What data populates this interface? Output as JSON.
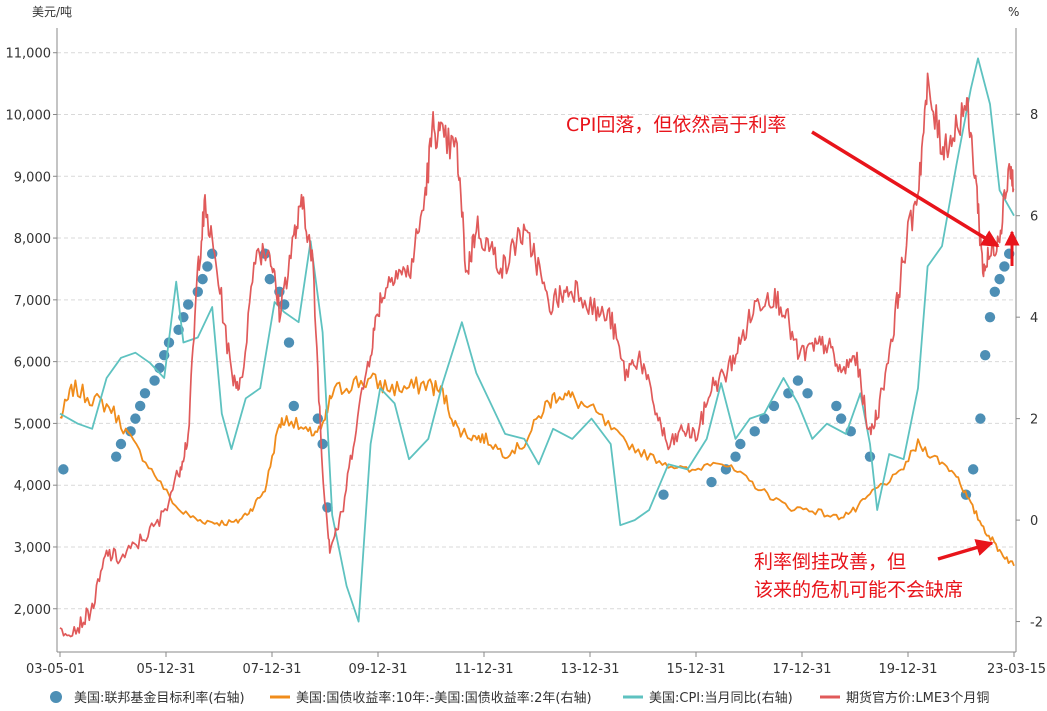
{
  "chart_data": {
    "type": "line",
    "left_axis": {
      "unit": "美元/吨",
      "ylim": [
        1300,
        11400
      ],
      "ticks": [
        "2,000",
        "3,000",
        "4,000",
        "5,000",
        "6,000",
        "7,000",
        "8,000",
        "9,000",
        "10,000",
        "11,000"
      ]
    },
    "right_axis": {
      "unit": "%",
      "ylim": [
        -2.6,
        9.7
      ],
      "ticks": [
        "-2",
        "0",
        "2",
        "4",
        "6",
        "8"
      ]
    },
    "x_ticks": [
      "03-05-01",
      "05-12-31",
      "07-12-31",
      "09-12-31",
      "11-12-31",
      "13-12-31",
      "15-12-31",
      "17-12-31",
      "19-12-31",
      "23-03-15"
    ],
    "xlim": [
      2003.33,
      2023.2
    ],
    "grid": true,
    "legend_position": "bottom",
    "series": [
      {
        "name": "美国:联邦基金目标利率(右轴)",
        "axis": "right",
        "style": "dots",
        "color": "#4d8fb5",
        "x": [
          2003.4,
          2004.5,
          2004.6,
          2004.8,
          2004.9,
          2005.0,
          2005.1,
          2005.3,
          2005.4,
          2005.5,
          2005.6,
          2005.8,
          2005.9,
          2006.0,
          2006.2,
          2006.3,
          2006.4,
          2006.5,
          2007.6,
          2007.7,
          2007.9,
          2008.0,
          2008.1,
          2008.2,
          2008.7,
          2008.8,
          2008.9,
          2015.9,
          2016.9,
          2017.2,
          2017.4,
          2017.5,
          2017.8,
          2018.0,
          2018.2,
          2018.5,
          2018.7,
          2018.9,
          2019.5,
          2019.6,
          2019.8,
          2020.2,
          2022.2,
          2022.35,
          2022.5,
          2022.6,
          2022.7,
          2022.8,
          2022.9,
          2023.0,
          2023.1
        ],
        "values": [
          1.0,
          1.25,
          1.5,
          1.75,
          2.0,
          2.25,
          2.5,
          2.75,
          3.0,
          3.25,
          3.5,
          3.75,
          4.0,
          4.25,
          4.5,
          4.75,
          5.0,
          5.25,
          5.25,
          4.75,
          4.5,
          4.25,
          3.5,
          2.25,
          2.0,
          1.5,
          0.25,
          0.5,
          0.75,
          1.0,
          1.25,
          1.5,
          1.75,
          2.0,
          2.25,
          2.5,
          2.75,
          2.5,
          2.25,
          2.0,
          1.75,
          1.25,
          0.5,
          1.0,
          2.0,
          3.25,
          4.0,
          4.5,
          4.75,
          5.0,
          5.25
        ]
      },
      {
        "name": "美国:国债收益率:10年:-美国:国债收益率:2年(右轴)",
        "axis": "right",
        "style": "line",
        "color": "#f08c1b",
        "x": [
          2003.33,
          2003.6,
          2004.0,
          2004.4,
          2004.8,
          2005.3,
          2005.8,
          2006.2,
          2006.6,
          2007.0,
          2007.3,
          2007.6,
          2007.9,
          2008.1,
          2008.5,
          2008.8,
          2009.0,
          2009.4,
          2009.8,
          2010.2,
          2010.6,
          2011.0,
          2011.3,
          2011.6,
          2011.9,
          2012.2,
          2012.6,
          2013.0,
          2013.4,
          2013.7,
          2014.0,
          2014.5,
          2015.0,
          2015.5,
          2016.0,
          2016.5,
          2017.0,
          2017.5,
          2018.0,
          2018.5,
          2019.0,
          2019.5,
          2019.9,
          2020.3,
          2020.8,
          2021.2,
          2021.6,
          2022.0,
          2022.3,
          2022.6,
          2022.9,
          2023.2
        ],
        "values": [
          2.0,
          2.6,
          2.4,
          2.2,
          1.6,
          0.9,
          0.2,
          0.0,
          -0.05,
          -0.05,
          0.2,
          0.6,
          1.9,
          2.0,
          1.7,
          1.8,
          2.5,
          2.7,
          2.75,
          2.6,
          2.6,
          2.7,
          2.5,
          1.8,
          1.65,
          1.6,
          1.3,
          1.5,
          2.2,
          2.5,
          2.4,
          2.1,
          1.6,
          1.3,
          1.1,
          0.95,
          1.2,
          0.9,
          0.55,
          0.25,
          0.2,
          0.05,
          0.2,
          0.6,
          0.9,
          1.5,
          1.2,
          0.9,
          0.3,
          -0.2,
          -0.6,
          -0.9
        ]
      },
      {
        "name": "美国:CPI:当月同比(右轴)",
        "axis": "right",
        "style": "line",
        "color": "#5ec2c0",
        "x": [
          2003.33,
          2003.7,
          2004.0,
          2004.3,
          2004.6,
          2004.9,
          2005.2,
          2005.5,
          2005.75,
          2005.9,
          2006.2,
          2006.5,
          2006.7,
          2006.9,
          2007.2,
          2007.5,
          2007.8,
          2008.0,
          2008.3,
          2008.55,
          2008.8,
          2009.0,
          2009.3,
          2009.55,
          2009.8,
          2010.0,
          2010.3,
          2010.6,
          2011.0,
          2011.3,
          2011.7,
          2012.0,
          2012.3,
          2012.6,
          2013.0,
          2013.3,
          2013.6,
          2014.0,
          2014.4,
          2014.8,
          2015.0,
          2015.3,
          2015.6,
          2016.0,
          2016.4,
          2016.8,
          2017.1,
          2017.4,
          2017.7,
          2018.0,
          2018.4,
          2018.7,
          2019.0,
          2019.3,
          2019.7,
          2020.0,
          2020.2,
          2020.35,
          2020.6,
          2020.9,
          2021.2,
          2021.4,
          2021.7,
          2022.0,
          2022.3,
          2022.45,
          2022.7,
          2022.9,
          2023.2
        ],
        "values": [
          2.1,
          1.9,
          1.8,
          2.8,
          3.2,
          3.3,
          3.1,
          2.8,
          4.7,
          3.5,
          3.6,
          4.2,
          2.1,
          1.4,
          2.4,
          2.6,
          4.3,
          4.1,
          3.9,
          5.5,
          3.7,
          0.1,
          -1.3,
          -2.0,
          1.5,
          2.6,
          2.3,
          1.2,
          1.6,
          2.7,
          3.9,
          2.9,
          2.3,
          1.7,
          1.6,
          1.1,
          1.8,
          1.6,
          2.0,
          1.5,
          -0.1,
          0.0,
          0.2,
          1.1,
          1.0,
          1.6,
          2.7,
          1.6,
          2.0,
          2.1,
          2.8,
          2.3,
          1.6,
          1.9,
          1.7,
          2.5,
          1.5,
          0.2,
          1.3,
          1.2,
          2.6,
          5.0,
          5.4,
          7.0,
          8.5,
          9.1,
          8.2,
          6.5,
          6.0
        ]
      },
      {
        "name": "期货官方价:LME3个月铜",
        "axis": "left",
        "style": "line",
        "color": "#e05a5a",
        "x": [
          2003.33,
          2003.7,
          2004.0,
          2004.3,
          2004.6,
          2005.0,
          2005.4,
          2005.8,
          2006.0,
          2006.2,
          2006.35,
          2006.6,
          2006.9,
          2007.1,
          2007.4,
          2007.7,
          2007.9,
          2008.2,
          2008.4,
          2008.6,
          2008.8,
          2008.95,
          2009.2,
          2009.5,
          2009.8,
          2010.0,
          2010.3,
          2010.6,
          2010.9,
          2011.1,
          2011.3,
          2011.6,
          2011.8,
          2012.0,
          2012.3,
          2012.6,
          2012.9,
          2013.2,
          2013.5,
          2013.8,
          2014.1,
          2014.5,
          2014.8,
          2015.1,
          2015.4,
          2015.7,
          2016.0,
          2016.3,
          2016.6,
          2016.9,
          2017.2,
          2017.5,
          2017.8,
          2018.1,
          2018.4,
          2018.7,
          2019.0,
          2019.3,
          2019.6,
          2019.9,
          2020.2,
          2020.4,
          2020.7,
          2020.9,
          2021.2,
          2021.4,
          2021.7,
          2021.9,
          2022.2,
          2022.4,
          2022.55,
          2022.7,
          2022.9,
          2023.1,
          2023.2
        ],
        "values": [
          1650,
          1700,
          2000,
          2900,
          2800,
          3100,
          3400,
          4200,
          4800,
          7500,
          8500,
          7500,
          5800,
          5600,
          7800,
          7800,
          6800,
          8000,
          8600,
          7500,
          4200,
          3000,
          3500,
          5000,
          6200,
          7000,
          7500,
          7400,
          8500,
          9800,
          9600,
          9400,
          7400,
          8200,
          7800,
          7500,
          8100,
          7800,
          6900,
          7100,
          7200,
          6800,
          6700,
          5800,
          6100,
          5300,
          4600,
          4900,
          4800,
          5600,
          5800,
          6300,
          6900,
          7100,
          6900,
          6100,
          6200,
          6300,
          5800,
          6100,
          4800,
          5300,
          6600,
          7700,
          8800,
          10400,
          9500,
          9600,
          10200,
          9000,
          7500,
          7700,
          8100,
          9200,
          8800
        ]
      }
    ]
  },
  "annotations": {
    "upper": "CPI回落，但依然高于利率",
    "lower_line1": "利率倒挂改善，但",
    "lower_line2": "该来的危机可能不会缺席"
  }
}
